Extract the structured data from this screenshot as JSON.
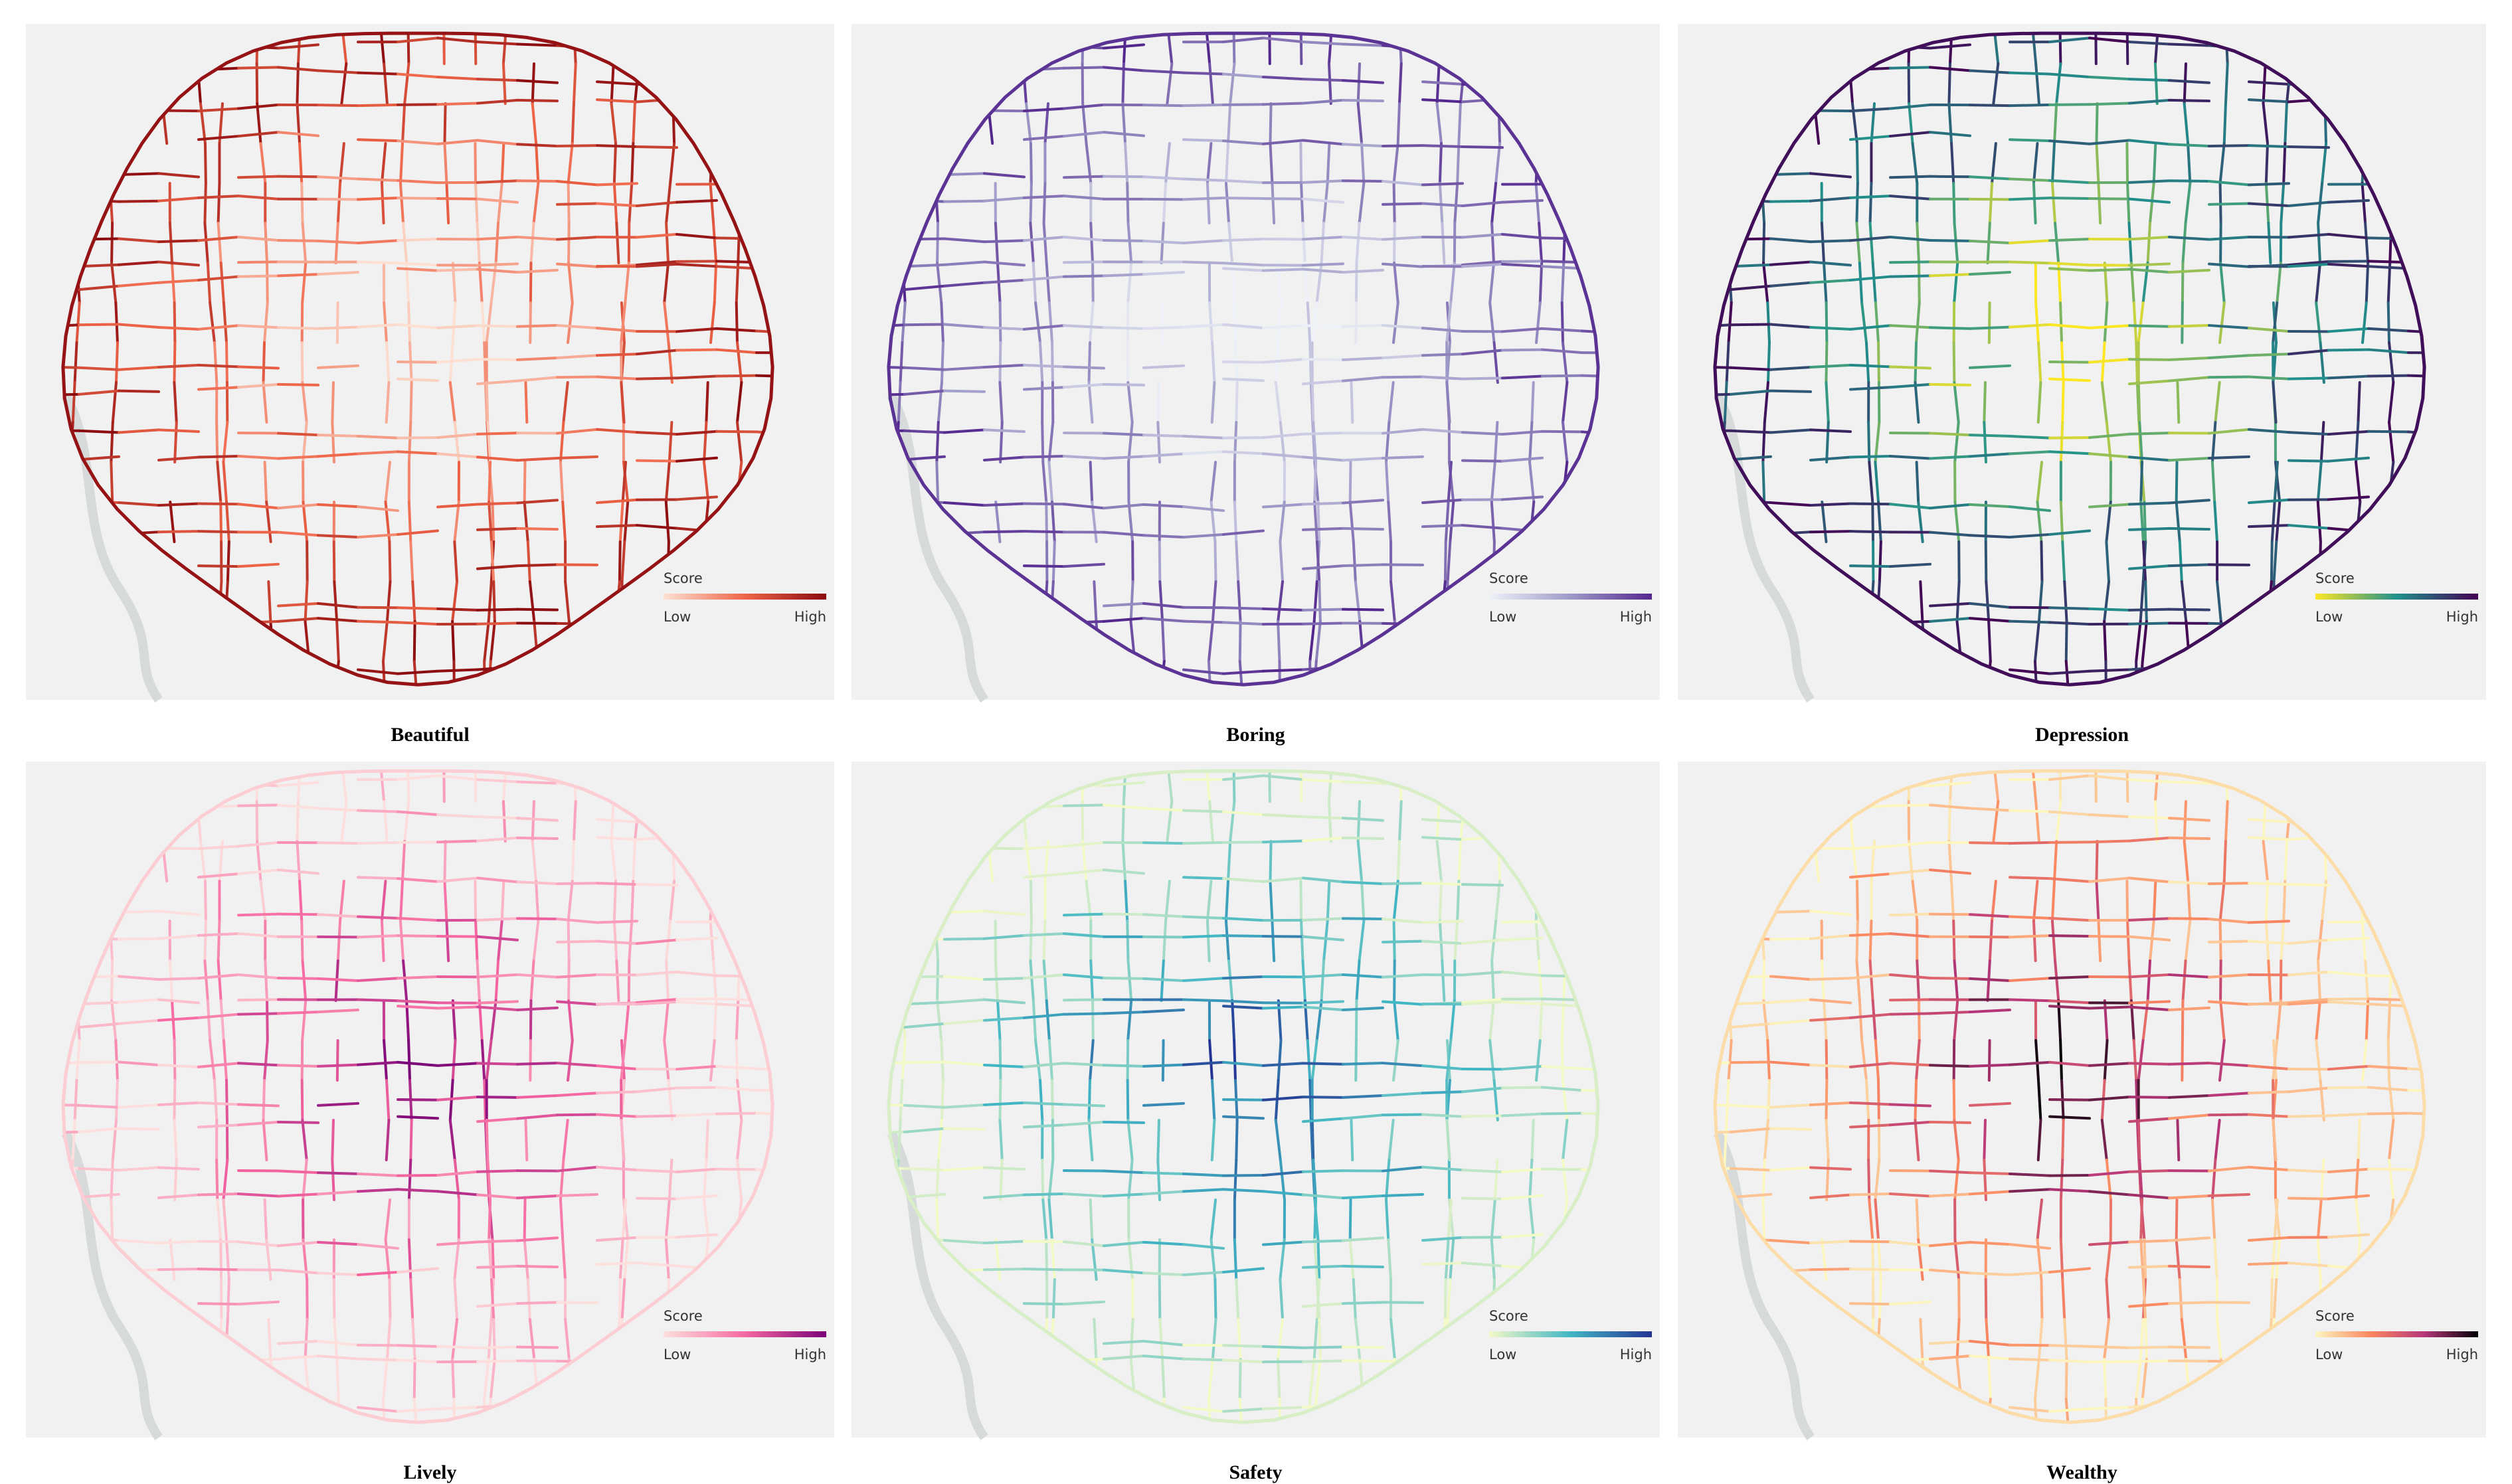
{
  "panels": [
    {
      "title": "Beautiful",
      "legend": {
        "title": "Score",
        "low": "Low",
        "high": "High",
        "colors": [
          "#fde0d2",
          "#ef6548",
          "#8b0a0f"
        ]
      }
    },
    {
      "title": "Boring",
      "legend": {
        "title": "Score",
        "low": "Low",
        "high": "High",
        "colors": [
          "#eef2f8",
          "#9e9ac8",
          "#54278f"
        ]
      }
    },
    {
      "title": "Depression",
      "legend": {
        "title": "Score",
        "low": "Low",
        "high": "High",
        "colors": [
          "#fde725",
          "#21918c",
          "#440154"
        ]
      }
    },
    {
      "title": "Lively",
      "legend": {
        "title": "Score",
        "low": "Low",
        "high": "High",
        "colors": [
          "#fde0dd",
          "#f768a1",
          "#7a0177"
        ]
      }
    },
    {
      "title": "Safety",
      "legend": {
        "title": "Score",
        "low": "Low",
        "high": "High",
        "colors": [
          "#f4f9c8",
          "#41b6c4",
          "#253494"
        ]
      }
    },
    {
      "title": "Wealthy",
      "legend": {
        "title": "Score",
        "low": "Low",
        "high": "High",
        "colors": [
          "#fcf6c0",
          "#fc8961",
          "#b73779",
          "#000004"
        ]
      }
    }
  ]
}
